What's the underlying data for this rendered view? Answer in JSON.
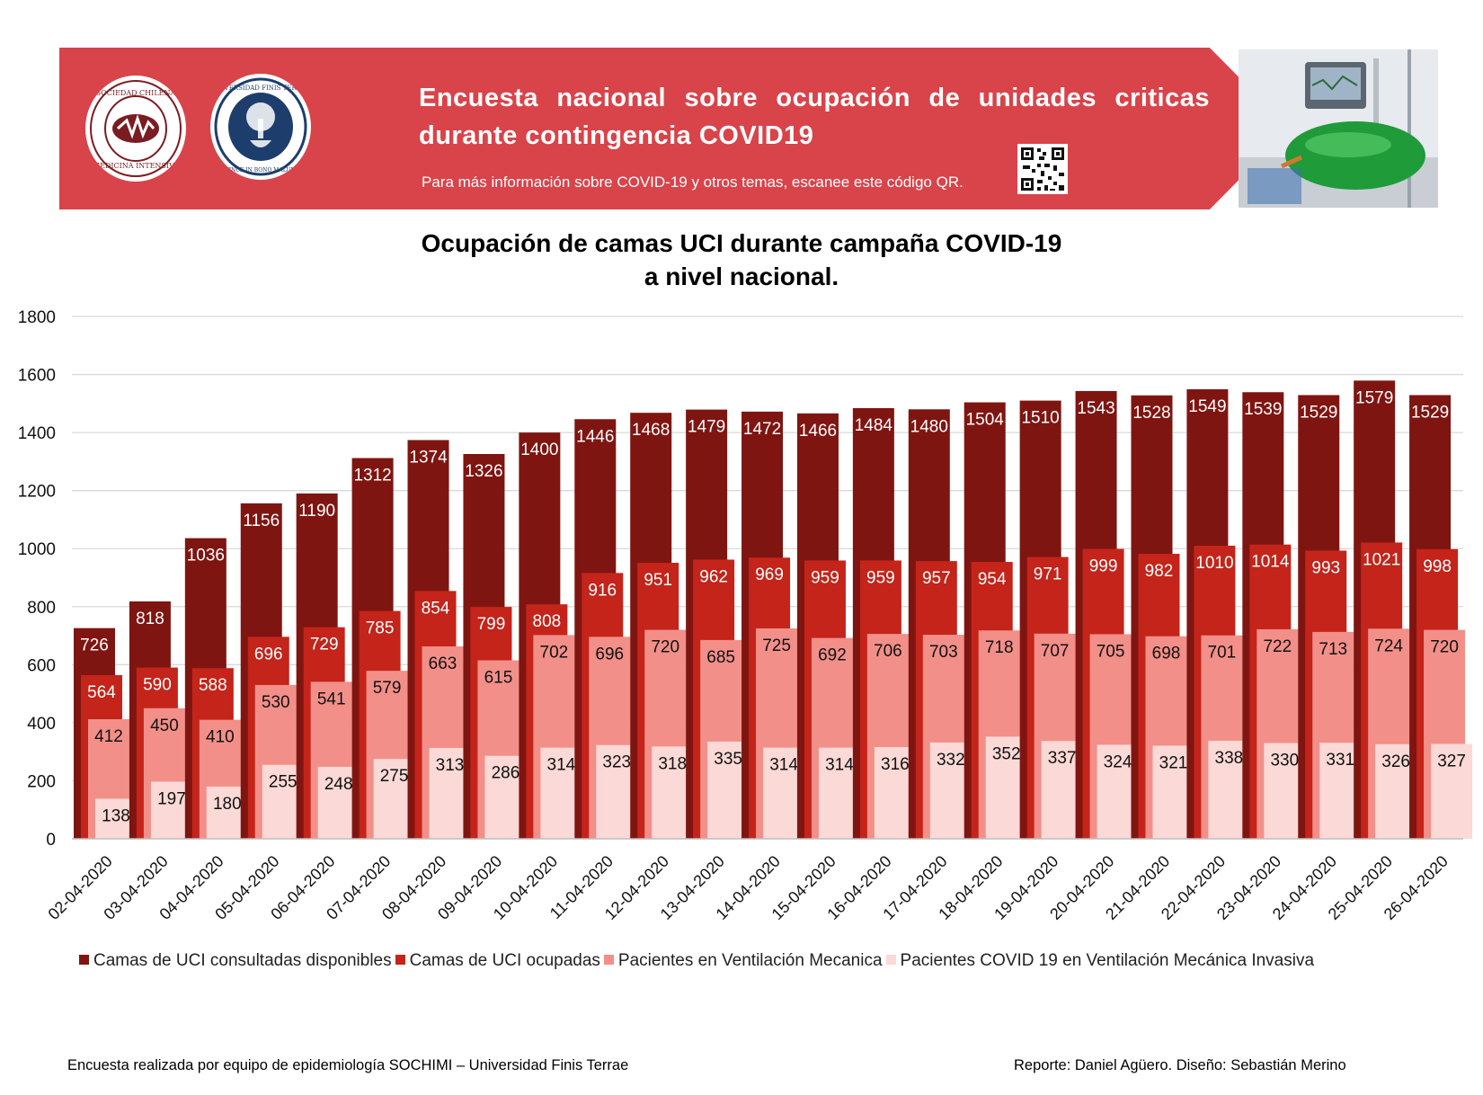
{
  "header": {
    "title": "Encuesta nacional sobre ocupación de unidades criticas durante contingencia COVID19",
    "subtitle": "Para más información sobre COVID-19 y otros temas, escanee este código QR.",
    "logo1_text": "SOCIEDAD CHILENA DE MEDICINA INTENSIVA",
    "logo2_text": "UNIVERSIDAD FINIS TERRAE · VINCE IN BONO MALUM",
    "qr_icon": "qr-code-icon",
    "banner_color": "#d9434a"
  },
  "chart_title_line1": "Ocupación de camas UCI durante campaña COVID-19",
  "chart_title_line2": "a nivel nacional.",
  "chart_data": {
    "type": "bar",
    "categories": [
      "02-04-2020",
      "03-04-2020",
      "04-04-2020",
      "05-04-2020",
      "06-04-2020",
      "07-04-2020",
      "08-04-2020",
      "09-04-2020",
      "10-04-2020",
      "11-04-2020",
      "12-04-2020",
      "13-04-2020",
      "14-04-2020",
      "15-04-2020",
      "16-04-2020",
      "17-04-2020",
      "18-04-2020",
      "19-04-2020",
      "20-04-2020",
      "21-04-2020",
      "22-04-2020",
      "23-04-2020",
      "24-04-2020",
      "25-04-2020",
      "26-04-2020"
    ],
    "series": [
      {
        "name": "Camas de UCI consultadas disponibles",
        "color": "#7f1511",
        "values": [
          726,
          818,
          1036,
          1156,
          1190,
          1312,
          1374,
          1326,
          1400,
          1446,
          1468,
          1479,
          1472,
          1466,
          1484,
          1480,
          1504,
          1510,
          1543,
          1528,
          1549,
          1539,
          1529,
          1579,
          1529
        ]
      },
      {
        "name": "Camas de UCI ocupadas",
        "color": "#c4241a",
        "values": [
          564,
          590,
          588,
          696,
          729,
          785,
          854,
          799,
          808,
          916,
          951,
          962,
          969,
          959,
          959,
          957,
          954,
          971,
          999,
          982,
          1010,
          1014,
          993,
          1021,
          998
        ]
      },
      {
        "name": "Pacientes en Ventilación Mecanica",
        "color": "#f28f89",
        "values": [
          412,
          450,
          410,
          530,
          541,
          579,
          663,
          615,
          702,
          696,
          720,
          685,
          725,
          692,
          706,
          703,
          718,
          707,
          705,
          698,
          701,
          722,
          713,
          724,
          720
        ]
      },
      {
        "name": "Pacientes COVID 19 en Ventilación Mecánica Invasiva",
        "color": "#fad9d6",
        "values": [
          138,
          197,
          180,
          255,
          248,
          275,
          313,
          286,
          314,
          323,
          318,
          335,
          314,
          314,
          316,
          332,
          352,
          337,
          324,
          321,
          338,
          330,
          331,
          326,
          327
        ]
      }
    ],
    "ylim": [
      0,
      1800
    ],
    "yticks": [
      0,
      200,
      400,
      600,
      800,
      1000,
      1200,
      1400,
      1600,
      1800
    ],
    "grid": true,
    "legend_position": "bottom"
  },
  "footer": {
    "left": "Encuesta realizada por equipo de epidemiología SOCHIMI – Universidad Finis Terrae",
    "right": "Reporte: Daniel Agüero. Diseño: Sebastián Merino"
  }
}
